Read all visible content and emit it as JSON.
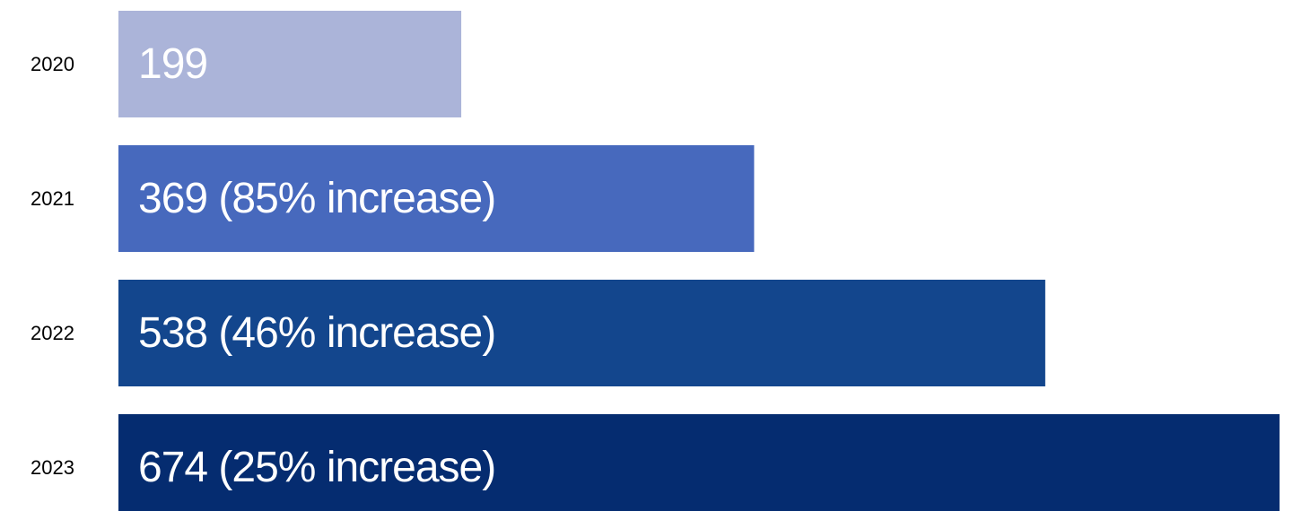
{
  "chart_data": {
    "type": "bar",
    "orientation": "horizontal",
    "title": "",
    "xlabel": "",
    "ylabel": "",
    "grid": false,
    "legend": "none",
    "categories": [
      "2020",
      "2021",
      "2022",
      "2023"
    ],
    "values": [
      199,
      369,
      538,
      674
    ],
    "data_labels": [
      "199",
      "369 (85% increase)",
      "538 (46% increase)",
      "674 (25% increase)"
    ],
    "colors": [
      "#abb4d9",
      "#4769bd",
      "#13468d",
      "#052c70"
    ],
    "xlim": [
      0,
      674
    ]
  }
}
